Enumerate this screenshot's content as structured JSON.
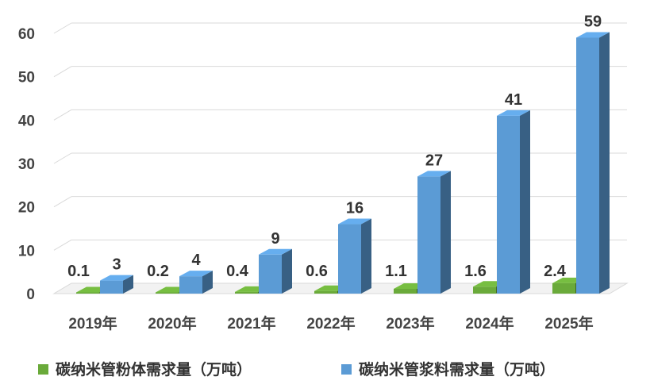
{
  "chart_data": {
    "type": "bar",
    "categories": [
      "2019年",
      "2020年",
      "2021年",
      "2022年",
      "2023年",
      "2024年",
      "2025年"
    ],
    "series": [
      {
        "name": "碳纳米管粉体需求量（万吨）",
        "values": [
          0.1,
          0.2,
          0.4,
          0.6,
          1.1,
          1.6,
          2.4
        ],
        "labels": [
          "0.1",
          "0.2",
          "0.4",
          "0.6",
          "1.1",
          "1.6",
          "2.4"
        ],
        "color": "#6AAA3A"
      },
      {
        "name": "碳纳米管浆料需求量（万吨）",
        "values": [
          3,
          4,
          9,
          16,
          27,
          41,
          59
        ],
        "labels": [
          "3",
          "4",
          "9",
          "16",
          "27",
          "41",
          "59"
        ],
        "color": "#5B9BD5"
      }
    ],
    "yticks": [
      "0",
      "10",
      "20",
      "30",
      "40",
      "50",
      "60"
    ],
    "ylim": [
      0,
      60
    ],
    "grid": true,
    "style": "3d-clustered",
    "legend_position": "bottom"
  }
}
